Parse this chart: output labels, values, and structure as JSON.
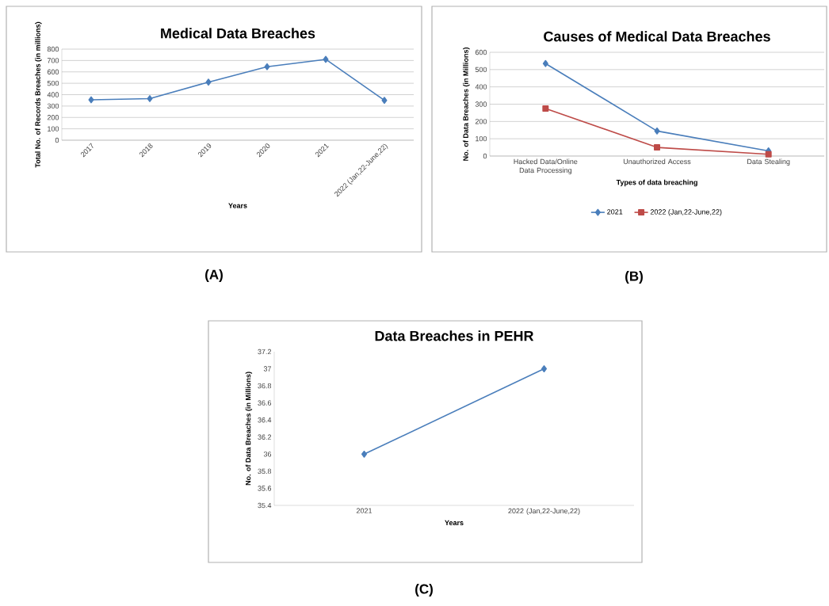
{
  "chart_data": [
    {
      "type": "line",
      "title": "Medical Data Breaches",
      "xlabel": "Years",
      "ylabel": "Total No. of Records Breaches (in millions)",
      "categories": [
        "2017",
        "2018",
        "2019",
        "2020",
        "2021",
        "2022 (Jan,22-June,22)"
      ],
      "values": [
        355,
        365,
        510,
        645,
        710,
        350
      ],
      "color": "#4a7ebb",
      "ylim": [
        0,
        800
      ],
      "yticks": [
        0,
        100,
        200,
        300,
        400,
        500,
        600,
        700,
        800
      ],
      "grid": "y",
      "marker": "diamond",
      "annotations": [
        "(A)"
      ]
    },
    {
      "type": "line",
      "title": "Causes of Medical Data Breaches",
      "xlabel": "Types of data breaching",
      "ylabel": "No. of Data Breaches (in Millions)",
      "categories": [
        "Hacked Data/Online Data Processing",
        "Unauthorized Access",
        "Data Stealing"
      ],
      "series": [
        {
          "name": "2021",
          "color": "#4a7ebb",
          "marker": "diamond",
          "values": [
            535,
            145,
            30
          ]
        },
        {
          "name": "2022 (Jan,22-June,22)",
          "color": "#be4b48",
          "marker": "square",
          "values": [
            275,
            50,
            10
          ]
        }
      ],
      "ylim": [
        0,
        600
      ],
      "yticks": [
        0,
        100,
        200,
        300,
        400,
        500,
        600
      ],
      "grid": "y",
      "legend": "bottom",
      "annotations": [
        "(B)"
      ]
    },
    {
      "type": "line",
      "title": "Data Breaches in PEHR",
      "xlabel": "Years",
      "ylabel": "No. of Data Breaches (in Millions)",
      "categories": [
        "2021",
        "2022 (Jan,22-June,22)"
      ],
      "values": [
        36,
        37
      ],
      "color": "#4a7ebb",
      "ylim": [
        35.4,
        37.2
      ],
      "yticks": [
        35.4,
        35.6,
        35.8,
        36,
        36.2,
        36.4,
        36.6,
        36.8,
        37,
        37.2
      ],
      "marker": "diamond",
      "annotations": [
        "(C)"
      ]
    }
  ]
}
